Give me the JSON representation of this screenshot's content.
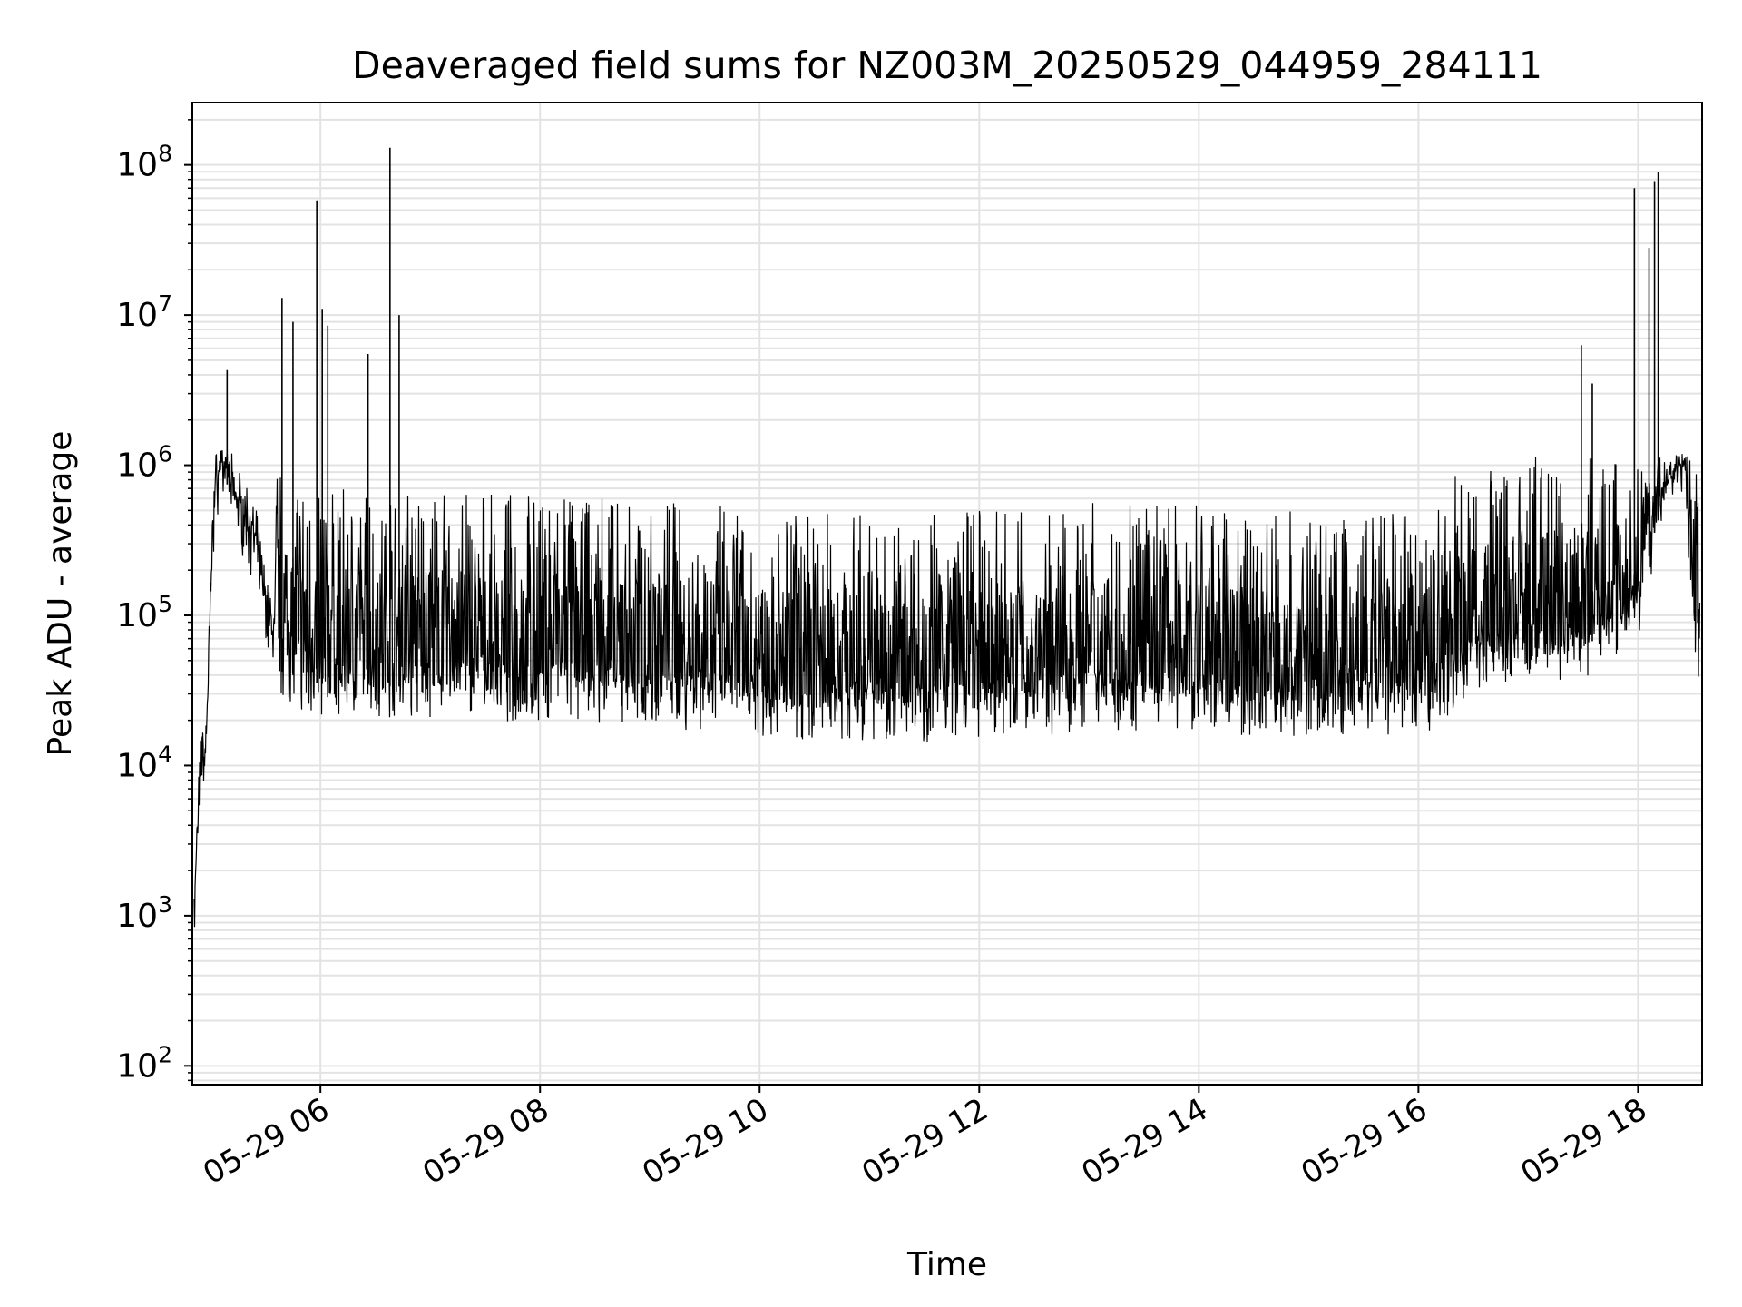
{
  "chart_data": {
    "type": "line",
    "title": "Deaveraged field sums for NZ003M_20250529_044959_284111",
    "xlabel": "Time",
    "ylabel": "Peak ADU - average",
    "x_scale": "time",
    "y_scale": "log",
    "ylim": [
      75,
      260000000
    ],
    "xlim": [
      "2025-05-29 04:50",
      "2025-05-29 18:35"
    ],
    "grid": true,
    "line_color": "#000000",
    "x_tick_labels": [
      "05-29 06",
      "05-29 08",
      "05-29 10",
      "05-29 12",
      "05-29 14",
      "05-29 16",
      "05-29 18"
    ],
    "x_ticks": [
      "2025-05-29 06:00",
      "2025-05-29 08:00",
      "2025-05-29 10:00",
      "2025-05-29 12:00",
      "2025-05-29 14:00",
      "2025-05-29 16:00",
      "2025-05-29 18:00"
    ],
    "y_ticks": [
      {
        "value": 100,
        "base": "10",
        "exp": "2"
      },
      {
        "value": 1000,
        "base": "10",
        "exp": "3"
      },
      {
        "value": 10000,
        "base": "10",
        "exp": "4"
      },
      {
        "value": 100000,
        "base": "10",
        "exp": "5"
      },
      {
        "value": 1000000,
        "base": "10",
        "exp": "6"
      },
      {
        "value": 10000000,
        "base": "10",
        "exp": "7"
      },
      {
        "value": 100000000,
        "base": "10",
        "exp": "8"
      }
    ],
    "series": [
      {
        "x": [
          "2025-05-29 04:51",
          "2025-05-29 04:53",
          "2025-05-29 04:55",
          "2025-05-29 04:57",
          "2025-05-29 04:59",
          "2025-05-29 05:01",
          "2025-05-29 05:03",
          "2025-05-29 05:05",
          "2025-05-29 05:08",
          "2025-05-29 05:12",
          "2025-05-29 05:16",
          "2025-05-29 05:20",
          "2025-05-29 05:25",
          "2025-05-29 05:30",
          "2025-05-29 05:35",
          "2025-05-29 05:40",
          "2025-05-29 05:45",
          "2025-05-29 05:50",
          "2025-05-29 05:55",
          "2025-05-29 06:00",
          "2025-05-29 06:30",
          "2025-05-29 07:00",
          "2025-05-29 07:30",
          "2025-05-29 08:00",
          "2025-05-29 08:30",
          "2025-05-29 09:00",
          "2025-05-29 09:30",
          "2025-05-29 10:00",
          "2025-05-29 10:30",
          "2025-05-29 11:00",
          "2025-05-29 11:30",
          "2025-05-29 12:00",
          "2025-05-29 12:30",
          "2025-05-29 13:00",
          "2025-05-29 13:30",
          "2025-05-29 14:00",
          "2025-05-29 14:30",
          "2025-05-29 15:00",
          "2025-05-29 15:30",
          "2025-05-29 16:00",
          "2025-05-29 16:30",
          "2025-05-29 17:00",
          "2025-05-29 17:30",
          "2025-05-29 18:00",
          "2025-05-29 18:10",
          "2025-05-29 18:20",
          "2025-05-29 18:25",
          "2025-05-29 18:30",
          "2025-05-29 18:34"
        ],
        "y": [
          900,
          3500,
          10000,
          9000,
          40000,
          300000,
          700000,
          900000,
          800000,
          600000,
          450000,
          350000,
          250000,
          100000,
          60000,
          45000,
          40000,
          38000,
          36000,
          35000,
          34000,
          33000,
          32000,
          33000,
          32000,
          30000,
          28000,
          25000,
          24000,
          24000,
          24000,
          25000,
          25000,
          28000,
          28000,
          27000,
          26000,
          25000,
          25000,
          24000,
          50000,
          60000,
          60000,
          120000,
          400000,
          800000,
          1000000,
          150000,
          30000
        ]
      }
    ],
    "spikes": [
      {
        "x": "2025-05-29 05:09",
        "y": 4300000
      },
      {
        "x": "2025-05-29 05:39",
        "y": 13000000
      },
      {
        "x": "2025-05-29 05:45",
        "y": 9000000
      },
      {
        "x": "2025-05-29 05:58",
        "y": 58000000
      },
      {
        "x": "2025-05-29 06:01",
        "y": 11000000
      },
      {
        "x": "2025-05-29 06:04",
        "y": 8500000
      },
      {
        "x": "2025-05-29 06:26",
        "y": 5500000
      },
      {
        "x": "2025-05-29 06:38",
        "y": 130000000
      },
      {
        "x": "2025-05-29 06:43",
        "y": 10000000
      },
      {
        "x": "2025-05-29 17:29",
        "y": 6300000
      },
      {
        "x": "2025-05-29 17:35",
        "y": 3500000
      },
      {
        "x": "2025-05-29 17:58",
        "y": 70000000
      },
      {
        "x": "2025-05-29 18:06",
        "y": 28000000
      },
      {
        "x": "2025-05-29 18:09",
        "y": 78000000
      },
      {
        "x": "2025-05-29 18:11",
        "y": 90000000
      }
    ]
  }
}
